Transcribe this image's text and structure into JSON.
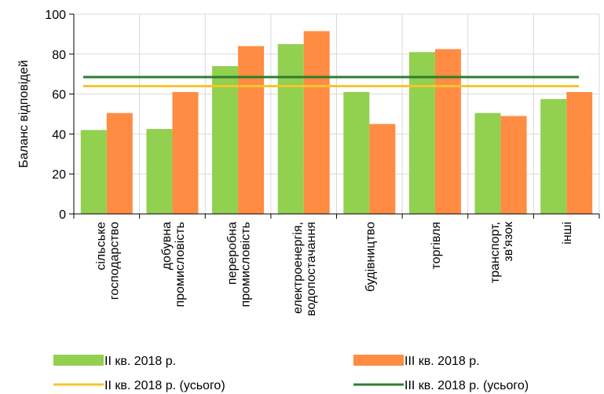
{
  "chart_data": {
    "type": "bar",
    "ylabel": "Баланс відповідей",
    "ylim": [
      0,
      100
    ],
    "yticks": [
      0,
      20,
      40,
      60,
      80,
      100
    ],
    "grid": true,
    "legend_position": "bottom",
    "categories": [
      [
        "сільське",
        "господарство"
      ],
      [
        "добувна",
        "промисловість"
      ],
      [
        "переробна",
        "промисловість"
      ],
      [
        "електроенергія,",
        "водопостачання"
      ],
      [
        "будівництво"
      ],
      [
        "торгівля"
      ],
      [
        "транспорт,",
        "зв'язок"
      ],
      [
        "інші"
      ]
    ],
    "series": [
      {
        "name": "II кв. 2018 р.",
        "color": "#92d050",
        "values": [
          42,
          42.5,
          74,
          85,
          61,
          81,
          50.5,
          57.5
        ]
      },
      {
        "name": "III кв. 2018 р.",
        "color": "#ff8c42",
        "values": [
          50.5,
          61,
          84,
          91.5,
          45,
          82.5,
          49,
          61
        ]
      }
    ],
    "lines": [
      {
        "name": "II кв. 2018 р. (усього)",
        "color": "#f6c530",
        "value": 64
      },
      {
        "name": "III кв. 2018 р. (усього)",
        "color": "#2e7d32",
        "value": 68.5
      }
    ]
  }
}
